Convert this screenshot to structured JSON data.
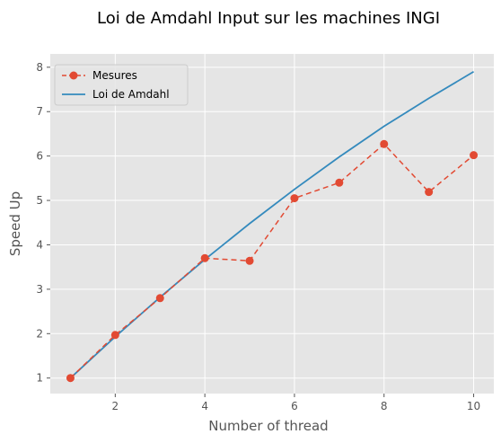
{
  "chart_data": {
    "type": "line",
    "title": "Loi de Amdahl Input sur les machines INGI",
    "xlabel": "Number of thread",
    "ylabel": "Speed Up",
    "xlim": [
      0.55,
      10.45
    ],
    "ylim": [
      0.65,
      8.3
    ],
    "xticks": [
      2,
      4,
      6,
      8,
      10
    ],
    "yticks": [
      1,
      2,
      3,
      4,
      5,
      6,
      7,
      8
    ],
    "grid": true,
    "legend_position": "top-left",
    "series": [
      {
        "name": "Mesures",
        "style": "dashed-with-markers",
        "color": "#E24A33",
        "x": [
          1,
          2,
          3,
          4,
          5,
          6,
          7,
          8,
          9,
          10
        ],
        "y": [
          1.0,
          1.97,
          2.8,
          3.7,
          3.64,
          5.05,
          5.4,
          6.27,
          5.19,
          6.02
        ]
      },
      {
        "name": "Loi de Amdahl",
        "style": "solid",
        "color": "#348ABD",
        "x": [
          1,
          2,
          3,
          4,
          5,
          6,
          7,
          8,
          9,
          10
        ],
        "y": [
          1.0,
          1.93,
          2.82,
          3.67,
          4.48,
          5.25,
          5.98,
          6.67,
          7.3,
          7.9
        ]
      }
    ]
  }
}
